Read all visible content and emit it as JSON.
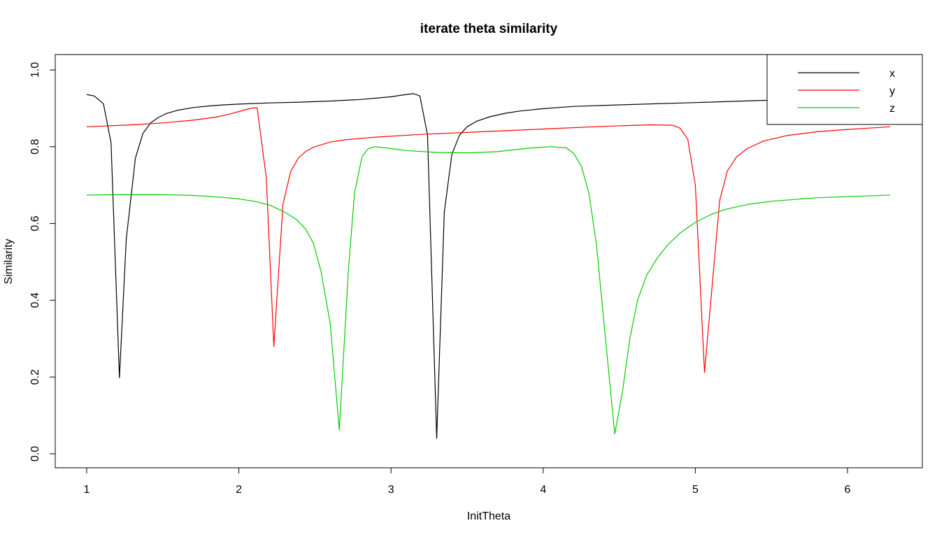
{
  "chart_data": {
    "type": "line",
    "title": "iterate theta similarity",
    "xlabel": "InitTheta",
    "ylabel": "Similarity",
    "xlim": [
      1,
      6.28
    ],
    "ylim": [
      0,
      1
    ],
    "xticks": [
      1,
      2,
      3,
      4,
      5,
      6
    ],
    "yticks": [
      "0.0",
      "0.2",
      "0.4",
      "0.6",
      "0.8",
      "1.0"
    ],
    "grid": false,
    "legend_position": "top-right",
    "series": [
      {
        "name": "x",
        "color": "#000000",
        "points": [
          [
            1.0,
            0.936
          ],
          [
            1.05,
            0.932
          ],
          [
            1.11,
            0.912
          ],
          [
            1.16,
            0.81
          ],
          [
            1.215,
            0.198
          ],
          [
            1.26,
            0.56
          ],
          [
            1.32,
            0.77
          ],
          [
            1.37,
            0.835
          ],
          [
            1.42,
            0.862
          ],
          [
            1.47,
            0.876
          ],
          [
            1.52,
            0.886
          ],
          [
            1.6,
            0.895
          ],
          [
            1.7,
            0.902
          ],
          [
            1.8,
            0.906
          ],
          [
            1.9,
            0.909
          ],
          [
            2.0,
            0.911
          ],
          [
            2.2,
            0.914
          ],
          [
            2.4,
            0.916
          ],
          [
            2.6,
            0.919
          ],
          [
            2.8,
            0.923
          ],
          [
            3.0,
            0.93
          ],
          [
            3.1,
            0.936
          ],
          [
            3.15,
            0.938
          ],
          [
            3.19,
            0.932
          ],
          [
            3.24,
            0.83
          ],
          [
            3.3,
            0.04
          ],
          [
            3.35,
            0.63
          ],
          [
            3.4,
            0.78
          ],
          [
            3.45,
            0.83
          ],
          [
            3.5,
            0.852
          ],
          [
            3.56,
            0.866
          ],
          [
            3.65,
            0.878
          ],
          [
            3.75,
            0.887
          ],
          [
            3.85,
            0.893
          ],
          [
            4.0,
            0.899
          ],
          [
            4.2,
            0.905
          ],
          [
            4.5,
            0.909
          ],
          [
            5.0,
            0.915
          ],
          [
            5.4,
            0.92
          ],
          [
            5.6,
            0.922
          ]
        ]
      },
      {
        "name": "y",
        "color": "#ff0000",
        "points": [
          [
            1.0,
            0.852
          ],
          [
            1.3,
            0.857
          ],
          [
            1.5,
            0.862
          ],
          [
            1.7,
            0.869
          ],
          [
            1.85,
            0.877
          ],
          [
            1.95,
            0.886
          ],
          [
            2.05,
            0.897
          ],
          [
            2.09,
            0.901
          ],
          [
            2.12,
            0.901
          ],
          [
            2.18,
            0.72
          ],
          [
            2.23,
            0.28
          ],
          [
            2.29,
            0.65
          ],
          [
            2.34,
            0.735
          ],
          [
            2.39,
            0.77
          ],
          [
            2.44,
            0.788
          ],
          [
            2.5,
            0.8
          ],
          [
            2.6,
            0.812
          ],
          [
            2.7,
            0.818
          ],
          [
            2.9,
            0.825
          ],
          [
            3.2,
            0.832
          ],
          [
            3.6,
            0.839
          ],
          [
            4.0,
            0.846
          ],
          [
            4.4,
            0.853
          ],
          [
            4.7,
            0.857
          ],
          [
            4.85,
            0.856
          ],
          [
            4.9,
            0.848
          ],
          [
            4.95,
            0.82
          ],
          [
            5.0,
            0.7
          ],
          [
            5.06,
            0.212
          ],
          [
            5.16,
            0.66
          ],
          [
            5.21,
            0.737
          ],
          [
            5.27,
            0.773
          ],
          [
            5.34,
            0.795
          ],
          [
            5.45,
            0.815
          ],
          [
            5.6,
            0.829
          ],
          [
            5.8,
            0.839
          ],
          [
            6.0,
            0.845
          ],
          [
            6.28,
            0.852
          ]
        ]
      },
      {
        "name": "z",
        "color": "#00cc00",
        "points": [
          [
            1.0,
            0.674
          ],
          [
            1.2,
            0.675
          ],
          [
            1.5,
            0.675
          ],
          [
            1.7,
            0.673
          ],
          [
            1.9,
            0.668
          ],
          [
            2.0,
            0.664
          ],
          [
            2.1,
            0.658
          ],
          [
            2.2,
            0.648
          ],
          [
            2.3,
            0.63
          ],
          [
            2.38,
            0.61
          ],
          [
            2.44,
            0.585
          ],
          [
            2.49,
            0.548
          ],
          [
            2.54,
            0.475
          ],
          [
            2.6,
            0.34
          ],
          [
            2.66,
            0.062
          ],
          [
            2.72,
            0.48
          ],
          [
            2.76,
            0.68
          ],
          [
            2.81,
            0.775
          ],
          [
            2.85,
            0.795
          ],
          [
            2.9,
            0.8
          ],
          [
            3.0,
            0.795
          ],
          [
            3.1,
            0.79
          ],
          [
            3.3,
            0.785
          ],
          [
            3.5,
            0.784
          ],
          [
            3.7,
            0.787
          ],
          [
            3.9,
            0.796
          ],
          [
            4.05,
            0.8
          ],
          [
            4.15,
            0.797
          ],
          [
            4.2,
            0.783
          ],
          [
            4.25,
            0.75
          ],
          [
            4.3,
            0.68
          ],
          [
            4.35,
            0.545
          ],
          [
            4.4,
            0.34
          ],
          [
            4.47,
            0.052
          ],
          [
            4.52,
            0.16
          ],
          [
            4.57,
            0.3
          ],
          [
            4.62,
            0.4
          ],
          [
            4.68,
            0.465
          ],
          [
            4.75,
            0.51
          ],
          [
            4.82,
            0.545
          ],
          [
            4.9,
            0.575
          ],
          [
            5.0,
            0.603
          ],
          [
            5.1,
            0.623
          ],
          [
            5.2,
            0.637
          ],
          [
            5.35,
            0.65
          ],
          [
            5.5,
            0.658
          ],
          [
            5.8,
            0.667
          ],
          [
            6.0,
            0.67
          ],
          [
            6.28,
            0.674
          ]
        ]
      }
    ]
  }
}
